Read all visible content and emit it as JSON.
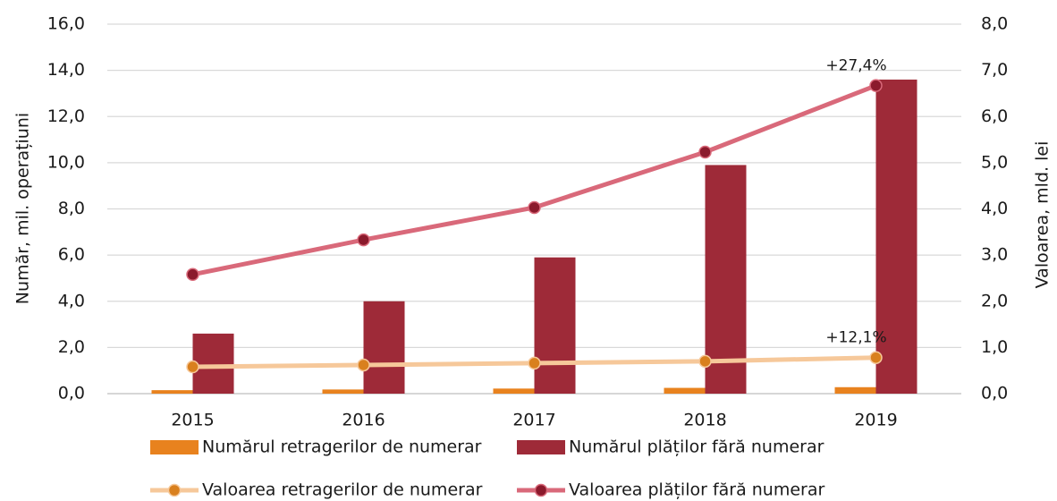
{
  "chart_data": {
    "type": "bar",
    "categories": [
      "2015",
      "2016",
      "2017",
      "2018",
      "2019"
    ],
    "series": [
      {
        "name": "Numărul retragerilor de numerar",
        "type": "bar",
        "color": "#e8821e",
        "values": [
          0.15,
          0.18,
          0.22,
          0.25,
          0.28
        ]
      },
      {
        "name": "Numărul plăților fără numerar",
        "type": "bar",
        "color": "#9e2a38",
        "values": [
          2.6,
          4.0,
          5.9,
          9.9,
          13.6
        ]
      },
      {
        "name": "Valoarea retragerilor de numerar",
        "type": "line",
        "axis": "y2",
        "color": "#f6c89a",
        "marker_color": "#d9801e",
        "values": [
          0.58,
          0.62,
          0.66,
          0.7,
          0.78
        ]
      },
      {
        "name": "Valoarea plăților fără numerar",
        "type": "line",
        "axis": "y2",
        "color": "#d9697a",
        "marker_color": "#8b1a2c",
        "values": [
          2.58,
          3.33,
          4.03,
          5.23,
          6.67
        ]
      }
    ],
    "annotations": [
      "+12,1%",
      "+27,4%"
    ],
    "ylabel": "Număr, mil. operațiuni",
    "y2label": "Valoarea, mld. lei",
    "ylim": [
      0,
      16
    ],
    "yticks": [
      {
        "value": 0,
        "label": "0,0"
      },
      {
        "value": 2,
        "label": "2,0"
      },
      {
        "value": 4,
        "label": "4,0"
      },
      {
        "value": 6,
        "label": "6,0"
      },
      {
        "value": 8,
        "label": "8,0"
      },
      {
        "value": 10,
        "label": "10,0"
      },
      {
        "value": 12,
        "label": "12,0"
      },
      {
        "value": 14,
        "label": "14,0"
      },
      {
        "value": 16,
        "label": "16,0"
      }
    ],
    "y2lim": [
      0,
      8
    ],
    "y2ticks": [
      {
        "value": 0,
        "label": "0,0"
      },
      {
        "value": 1,
        "label": "1,0"
      },
      {
        "value": 2,
        "label": "2,0"
      },
      {
        "value": 3,
        "label": "3,0"
      },
      {
        "value": 4,
        "label": "4,0"
      },
      {
        "value": 5,
        "label": "5,0"
      },
      {
        "value": 6,
        "label": "6,0"
      },
      {
        "value": 7,
        "label": "7,0"
      },
      {
        "value": 8,
        "label": "8,0"
      }
    ],
    "grid": true
  }
}
